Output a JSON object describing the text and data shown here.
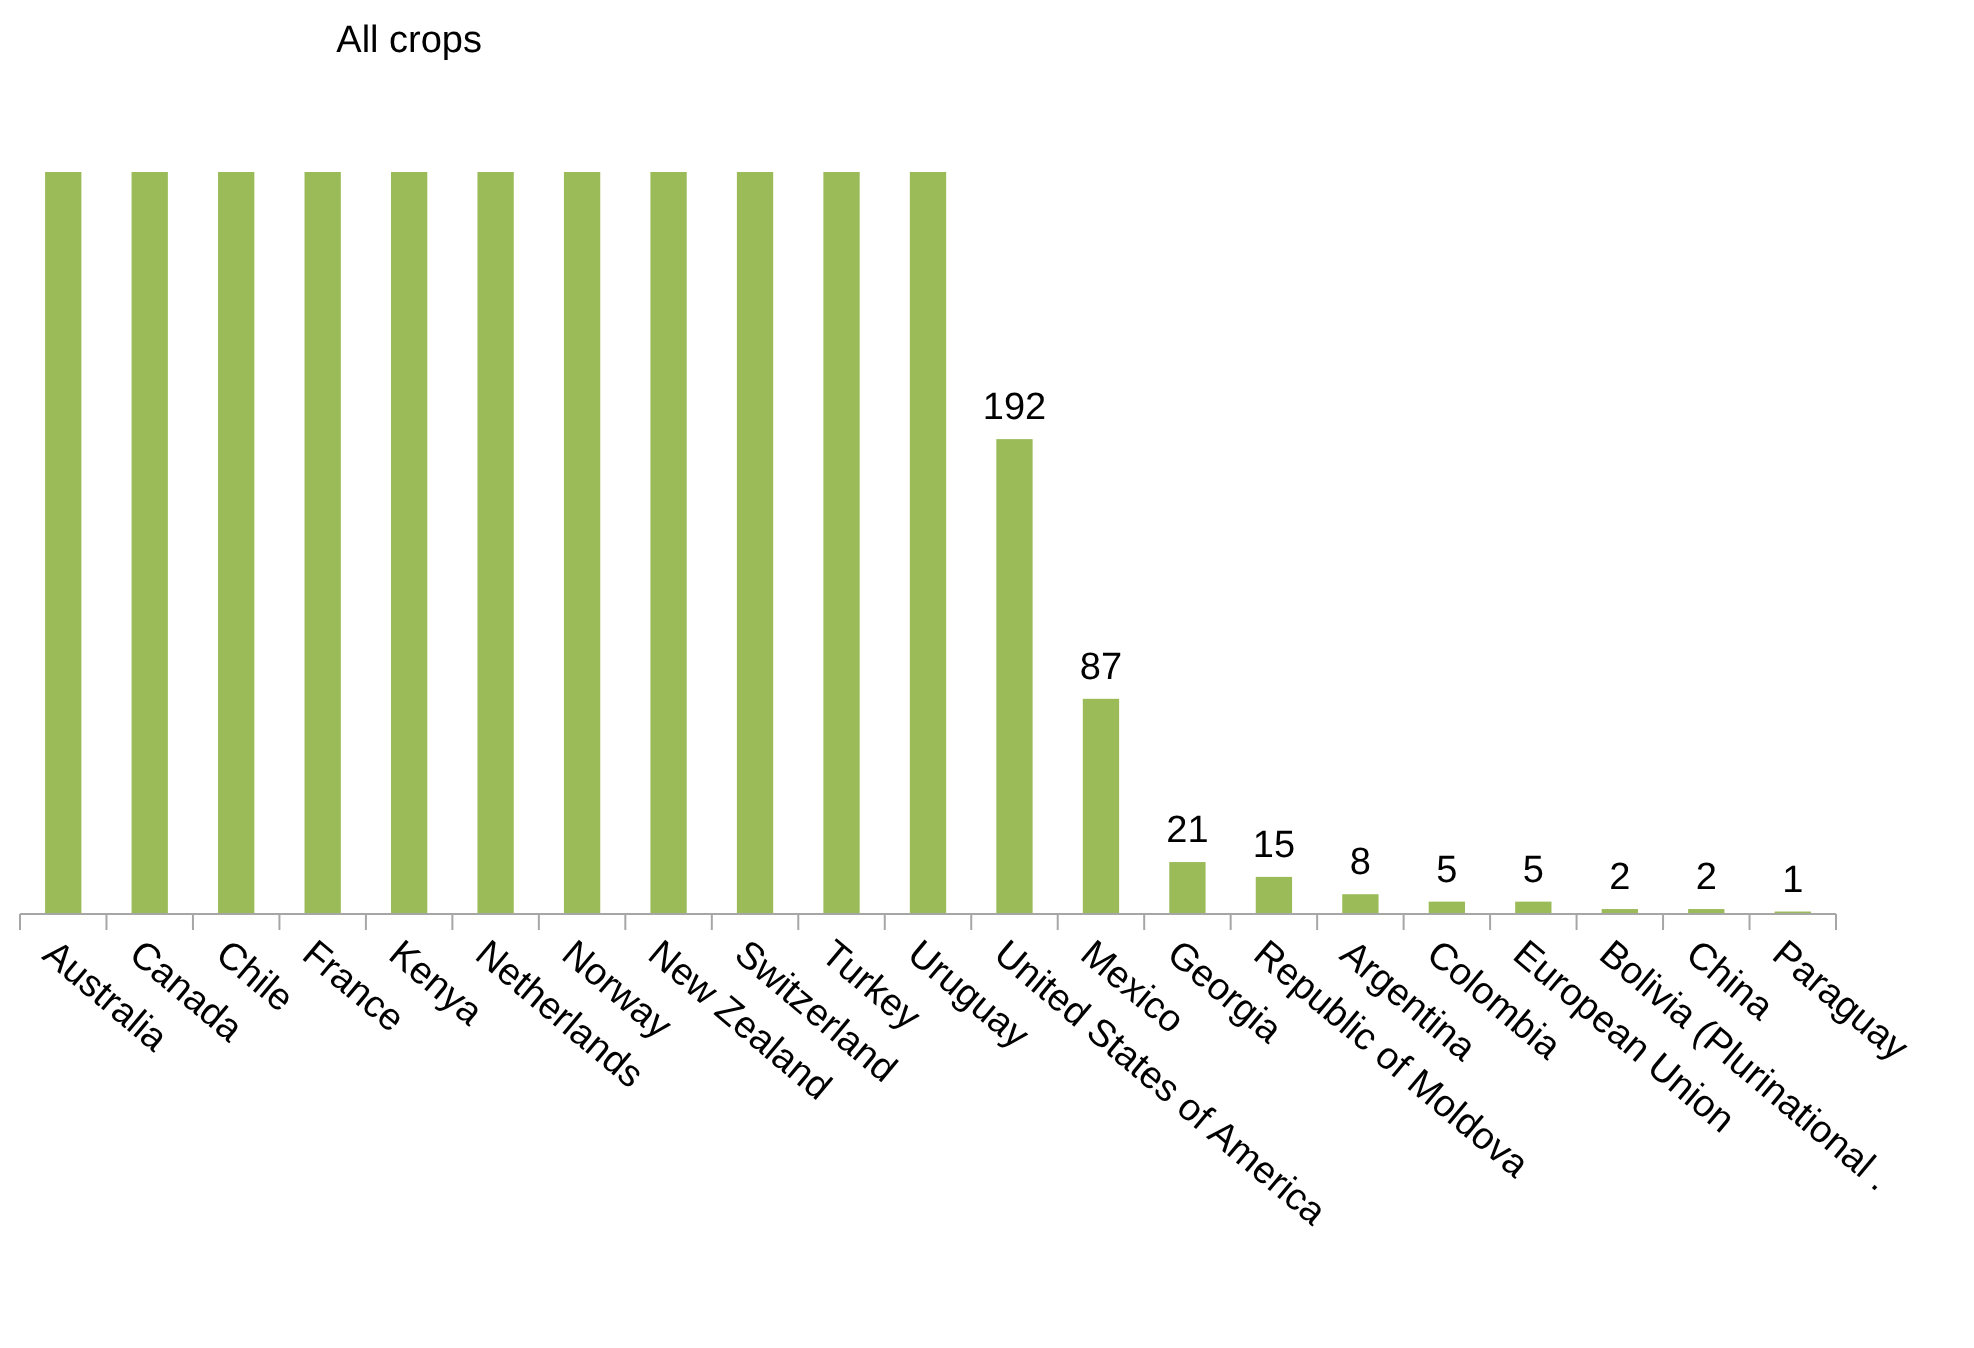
{
  "chart_data": {
    "type": "bar",
    "categories": [
      "Australia",
      "Canada",
      "Chile",
      "France",
      "Kenya",
      "Netherlands",
      "Norway",
      "New Zealand",
      "Switzerland",
      "Turkey",
      "Uruguay",
      "United States of America",
      "Mexico",
      "Georgia",
      "Republic of Moldova",
      "Argentina",
      "Colombia",
      "European Union",
      "Bolivia (Plurinational .",
      "China",
      "Paraguay"
    ],
    "values": [
      300,
      300,
      300,
      300,
      300,
      300,
      300,
      300,
      300,
      300,
      300,
      192,
      87,
      21,
      15,
      8,
      5,
      5,
      2,
      2,
      1
    ],
    "value_labels": [
      null,
      null,
      null,
      null,
      null,
      null,
      null,
      null,
      null,
      null,
      null,
      "192",
      "87",
      "21",
      "15",
      "8",
      "5",
      "5",
      "2",
      "2",
      "1"
    ],
    "color": "#9bbb59",
    "annotations": [
      "All crops"
    ]
  }
}
